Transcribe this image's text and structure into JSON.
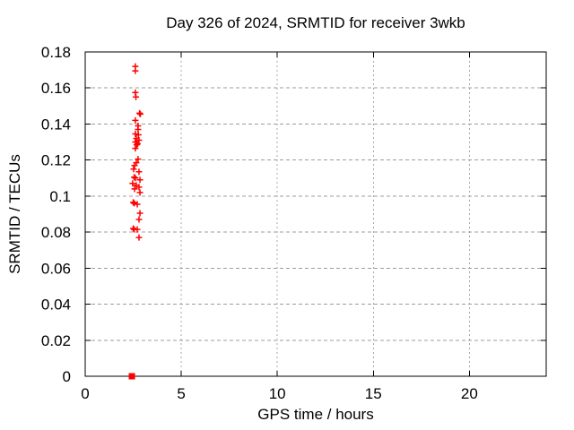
{
  "chart_data": {
    "type": "scatter",
    "title": "Day 326 of 2024, SRMTID for receiver 3wkb",
    "x_axis": {
      "label": "GPS time / hours",
      "range": [
        0,
        24
      ],
      "ticks": [
        {
          "value": 0,
          "label": "0"
        },
        {
          "value": 5,
          "label": "5"
        },
        {
          "value": 10,
          "label": "10"
        },
        {
          "value": 15,
          "label": "15"
        },
        {
          "value": 20,
          "label": "20"
        }
      ]
    },
    "y_axis": {
      "label": "SRMTID / TECUs",
      "range": [
        0,
        0.18
      ],
      "ticks": [
        {
          "value": 0,
          "label": "0"
        },
        {
          "value": 0.02,
          "label": "0.02"
        },
        {
          "value": 0.04,
          "label": "0.04"
        },
        {
          "value": 0.06,
          "label": "0.06"
        },
        {
          "value": 0.08,
          "label": "0.08"
        },
        {
          "value": 0.1,
          "label": "0.1"
        },
        {
          "value": 0.12,
          "label": "0.12"
        },
        {
          "value": 0.14,
          "label": "0.14"
        },
        {
          "value": 0.16,
          "label": "0.16"
        },
        {
          "value": 0.18,
          "label": "0.18"
        }
      ]
    },
    "grid": true,
    "legend": false,
    "colors": {
      "marker": "#ff0000",
      "grid": "#9c9c9c",
      "axis": "#000000",
      "background": "#ffffff"
    },
    "series": [
      {
        "name": "srmtid-values",
        "marker": "plus",
        "color": "#ff0000",
        "points": [
          [
            2.61,
            0.172
          ],
          [
            2.61,
            0.1695
          ],
          [
            2.61,
            0.1575
          ],
          [
            2.64,
            0.155
          ],
          [
            2.83,
            0.146
          ],
          [
            2.87,
            0.1455
          ],
          [
            2.61,
            0.142
          ],
          [
            2.75,
            0.139
          ],
          [
            2.75,
            0.137
          ],
          [
            2.61,
            0.1345
          ],
          [
            2.77,
            0.134
          ],
          [
            2.66,
            0.132
          ],
          [
            2.8,
            0.131
          ],
          [
            2.61,
            0.13
          ],
          [
            2.68,
            0.1285
          ],
          [
            2.73,
            0.129
          ],
          [
            2.61,
            0.1265
          ],
          [
            2.75,
            0.1205
          ],
          [
            2.66,
            0.1185
          ],
          [
            2.57,
            0.117
          ],
          [
            2.52,
            0.115
          ],
          [
            2.8,
            0.1135
          ],
          [
            2.55,
            0.1105
          ],
          [
            2.61,
            0.11
          ],
          [
            2.85,
            0.109
          ],
          [
            2.47,
            0.107
          ],
          [
            2.66,
            0.106
          ],
          [
            2.8,
            0.105
          ],
          [
            2.57,
            0.104
          ],
          [
            2.85,
            0.102
          ],
          [
            2.5,
            0.0965
          ],
          [
            2.55,
            0.096
          ],
          [
            2.71,
            0.0955
          ],
          [
            2.85,
            0.0905
          ],
          [
            2.8,
            0.087
          ],
          [
            2.5,
            0.082
          ],
          [
            2.55,
            0.0815
          ],
          [
            2.71,
            0.0815
          ],
          [
            2.8,
            0.077
          ]
        ]
      },
      {
        "name": "zero-reference",
        "marker": "filled-square",
        "color": "#ff0000",
        "points": [
          [
            2.43,
            0
          ]
        ]
      }
    ]
  }
}
